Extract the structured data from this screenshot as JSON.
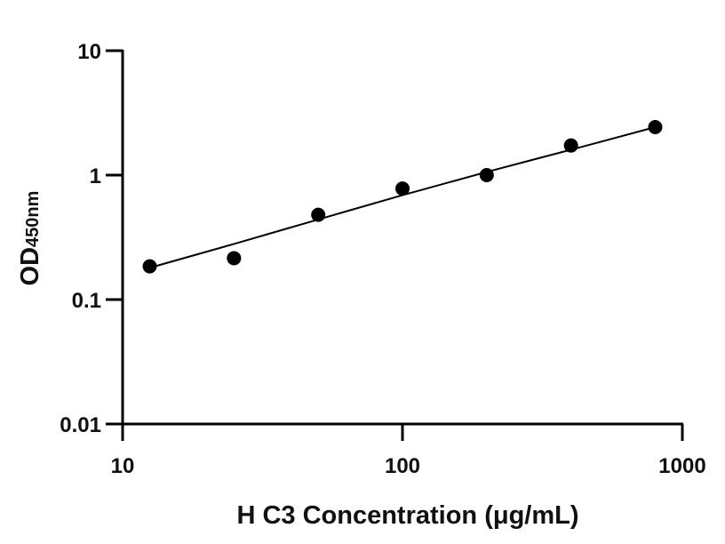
{
  "chart_data": {
    "type": "scatter",
    "title": "",
    "xlabel": "H C3 Concentration (μg/mL)",
    "ylabel": {
      "main": "OD",
      "subscript": "450nm"
    },
    "x_scale": "log",
    "y_scale": "log",
    "xlim": [
      10,
      1000
    ],
    "ylim": [
      0.01,
      10
    ],
    "x_ticks": [
      "10",
      "100",
      "1000"
    ],
    "y_ticks": [
      "0.01",
      "0.1",
      "1",
      "10"
    ],
    "grid": false,
    "legend": "none",
    "series": [
      {
        "x": [
          12.5,
          25,
          50,
          100,
          200,
          400,
          800
        ],
        "y": [
          0.185,
          0.215,
          0.48,
          0.78,
          1.0,
          1.73,
          2.43
        ]
      }
    ],
    "fit_curve": {
      "x": [
        12.5,
        25,
        50,
        100,
        200,
        400,
        800
      ],
      "y": [
        0.18,
        0.28,
        0.44,
        0.69,
        1.06,
        1.6,
        2.43
      ]
    },
    "colors": {
      "points": "#000000",
      "line": "#000000",
      "axes": "#000000"
    }
  }
}
